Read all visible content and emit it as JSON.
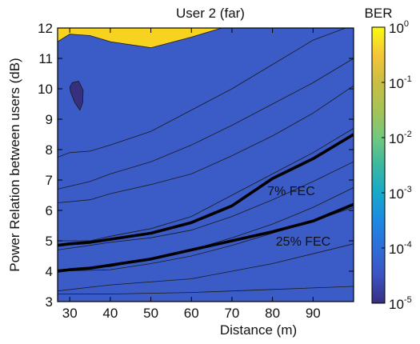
{
  "chart_data": {
    "type": "heatmap",
    "subtype": "filled-contour",
    "title": "User 2 (far)",
    "xlabel": "Distance (m)",
    "ylabel": "Power Relation between users (dB)",
    "xlim": [
      27,
      100
    ],
    "ylim": [
      3,
      12
    ],
    "xticks": [
      "30",
      "40",
      "50",
      "60",
      "70",
      "80",
      "90"
    ],
    "yticks": [
      "3",
      "4",
      "5",
      "6",
      "7",
      "8",
      "9",
      "10",
      "11",
      "12"
    ],
    "colorbar": {
      "label": "BER",
      "scale": "log",
      "range": [
        1e-05,
        1
      ],
      "ticks": [
        {
          "base": "10",
          "exp": "0",
          "value": 1
        },
        {
          "base": "10",
          "exp": "-1",
          "value": 0.1
        },
        {
          "base": "10",
          "exp": "-2",
          "value": 0.01
        },
        {
          "base": "10",
          "exp": "-3",
          "value": 0.001
        },
        {
          "base": "10",
          "exp": "-4",
          "value": 0.0001
        },
        {
          "base": "10",
          "exp": "-5",
          "value": 1e-05
        }
      ],
      "colormap": [
        "#f9fb0e",
        "#f5c53a",
        "#c8be43",
        "#a6c255",
        "#72c87e",
        "#3ab8a0",
        "#17a9c9",
        "#1c89e3",
        "#2f6ed8",
        "#3d52c2",
        "#36307f"
      ]
    },
    "contour_bands": [
      {
        "color": "#f2b637",
        "x": [
          27,
          40,
          60,
          80,
          100
        ],
        "y": [
          3.25,
          3.25,
          3.3,
          3.4,
          3.5
        ]
      },
      {
        "color": "#c8b94a",
        "x": [
          27,
          40,
          60,
          80,
          100
        ],
        "y": [
          3.35,
          3.55,
          3.75,
          4.25,
          4.9
        ]
      },
      {
        "color": "#aebf55",
        "x": [
          27,
          40,
          50,
          60,
          70,
          80,
          90,
          100
        ],
        "y": [
          4.0,
          4.05,
          4.25,
          4.5,
          4.85,
          5.25,
          5.65,
          6.1
        ]
      },
      {
        "color": "#8dc469",
        "x": [
          27,
          40,
          50,
          60,
          70,
          80,
          90,
          100
        ],
        "y": [
          4.05,
          4.15,
          4.4,
          4.7,
          5.1,
          5.55,
          6.1,
          6.75
        ]
      },
      {
        "color": "#4fbc88",
        "x": [
          27,
          35,
          40,
          50,
          60,
          70,
          80,
          90,
          100
        ],
        "y": [
          4.7,
          4.85,
          4.95,
          5.1,
          5.35,
          5.8,
          6.35,
          6.95,
          7.6
        ]
      },
      {
        "color": "#27b0a8",
        "x": [
          27,
          35,
          40,
          50,
          60,
          70,
          80,
          90,
          100
        ],
        "y": [
          5.0,
          5.0,
          5.15,
          5.4,
          5.8,
          6.5,
          7.2,
          7.9,
          8.7
        ]
      },
      {
        "color": "#15a1cc",
        "x": [
          27,
          35,
          40,
          50,
          60,
          70,
          80,
          90,
          100
        ],
        "y": [
          6.25,
          6.35,
          6.55,
          6.85,
          7.2,
          7.8,
          8.45,
          9.2,
          10.1
        ]
      },
      {
        "color": "#2189de",
        "x": [
          27,
          35,
          40,
          50,
          60,
          70,
          80,
          90,
          100
        ],
        "y": [
          6.7,
          6.95,
          7.2,
          7.6,
          8.15,
          8.8,
          9.5,
          10.2,
          11.0
        ]
      },
      {
        "color": "#3070d5",
        "x": [
          27,
          30,
          35,
          40,
          50,
          60,
          70,
          80,
          90,
          100
        ],
        "y": [
          7.75,
          7.9,
          7.95,
          8.15,
          8.6,
          9.3,
          10.0,
          10.8,
          11.6,
          12.1
        ]
      },
      {
        "color": "#3b5cc6",
        "x": [
          27,
          30,
          35,
          40,
          50,
          60,
          70,
          80,
          90,
          100
        ],
        "y": [
          11.55,
          11.8,
          11.75,
          11.55,
          11.35,
          11.7,
          12.1,
          12.1,
          12.1,
          12.1
        ]
      }
    ],
    "series": [
      {
        "name": "7% FEC",
        "x": [
          27,
          30,
          35,
          40,
          50,
          60,
          70,
          80,
          90,
          100
        ],
        "y": [
          4.85,
          4.9,
          4.95,
          5.05,
          5.25,
          5.6,
          6.15,
          7.05,
          7.7,
          8.5
        ]
      },
      {
        "name": "25% FEC",
        "x": [
          27,
          30,
          35,
          40,
          50,
          60,
          70,
          80,
          90,
          100
        ],
        "y": [
          4.0,
          4.05,
          4.1,
          4.2,
          4.4,
          4.7,
          5.0,
          5.3,
          5.65,
          6.2
        ]
      }
    ],
    "island": {
      "color": "#36307f",
      "x": [
        30,
        30.6,
        32.2,
        33.3,
        33.2,
        32.5,
        31.2,
        30.2,
        30
      ],
      "y": [
        10.05,
        10.2,
        10.25,
        9.95,
        9.55,
        9.3,
        9.55,
        9.9,
        10.05
      ]
    }
  }
}
